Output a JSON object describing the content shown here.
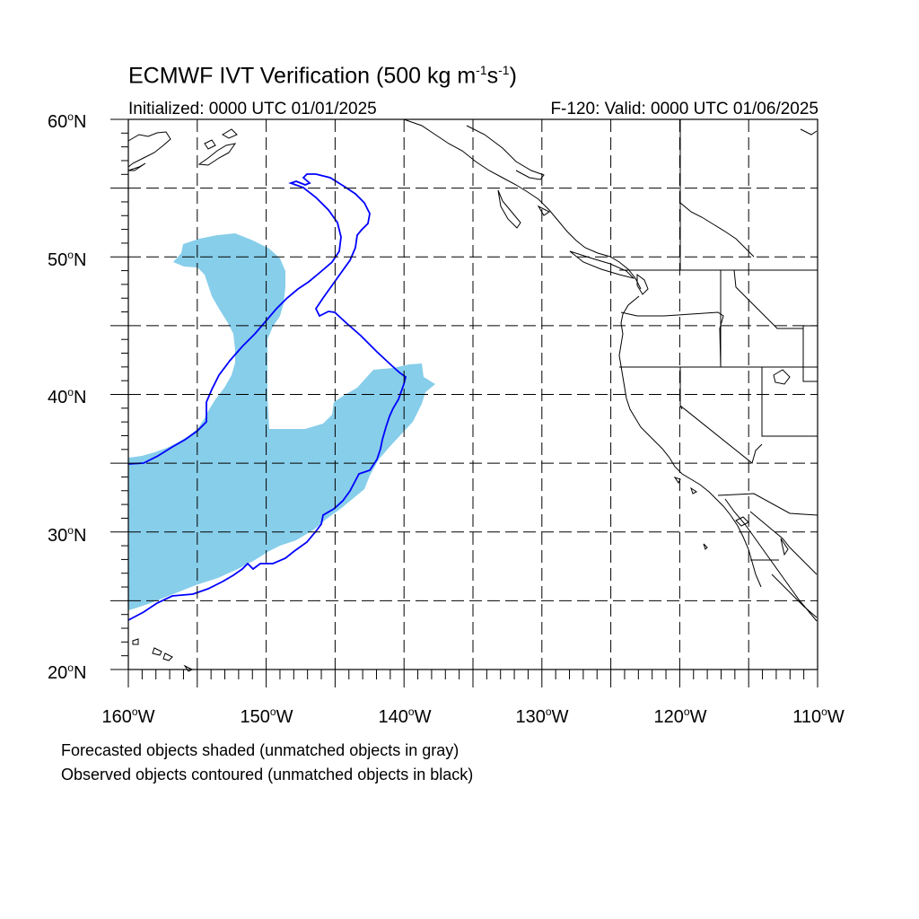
{
  "title": {
    "main": "ECMWF IVT Verification (500 kg m",
    "exp1": "-1",
    "mid": "s",
    "exp2": "-1",
    "close": ")"
  },
  "subtitle": {
    "left": "Initialized: 0000 UTC 01/01/2025",
    "right": "F-120: Valid: 0000 UTC 01/06/2025"
  },
  "axes": {
    "lat_labels": [
      {
        "num": "60",
        "hemi": "N"
      },
      {
        "num": "50",
        "hemi": "N"
      },
      {
        "num": "40",
        "hemi": "N"
      },
      {
        "num": "30",
        "hemi": "N"
      },
      {
        "num": "20",
        "hemi": "N"
      }
    ],
    "lon_labels": [
      {
        "num": "160",
        "hemi": "W"
      },
      {
        "num": "150",
        "hemi": "W"
      },
      {
        "num": "140",
        "hemi": "W"
      },
      {
        "num": "130",
        "hemi": "W"
      },
      {
        "num": "120",
        "hemi": "W"
      },
      {
        "num": "110",
        "hemi": "W"
      }
    ],
    "lat_range": [
      20,
      60
    ],
    "lon_range": [
      -160,
      -110
    ],
    "grid_step_deg": 5,
    "degree_symbol": "o"
  },
  "notes": {
    "line1": "Forecasted objects shaded (unmatched objects in gray)",
    "line2": "Observed objects contoured (unmatched objects in black)"
  },
  "colors": {
    "forecast_fill": "#87ceea",
    "observed_contour": "#0000ff",
    "coastline": "#000000",
    "grid": "#000000"
  }
}
